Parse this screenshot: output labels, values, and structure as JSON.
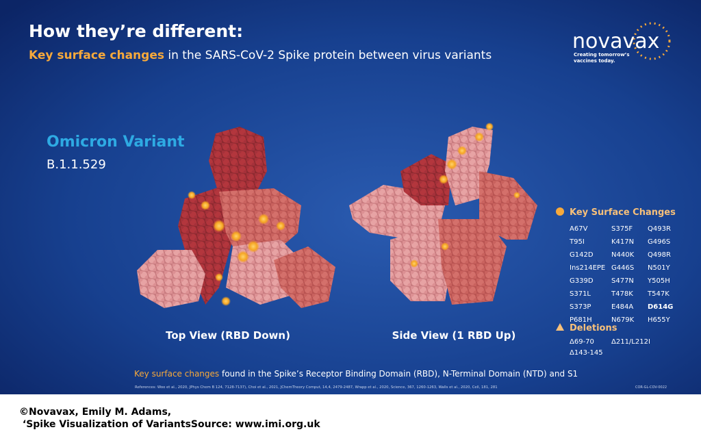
{
  "header": {
    "title": "How they’re different:",
    "subtitle_highlight": "Key surface changes",
    "subtitle_rest": " in the SARS-CoV-2 Spike protein between virus variants"
  },
  "logo": {
    "name": "novavax",
    "tagline_1": "Creating tomorrow’s",
    "tagline_2": "vaccines today."
  },
  "variant": {
    "name": "Omicron Variant",
    "lineage": "B.1.1.529"
  },
  "views": {
    "top": "Top View (RBD Down)",
    "side": "Side View (1 RBD Up)"
  },
  "legend": {
    "changes_title": "Key Surface Changes",
    "changes": [
      [
        "A67V",
        "T95I",
        "G142D",
        "Ins214EPE",
        "G339D",
        "S371L",
        "S373P",
        "P681H"
      ],
      [
        "S375F",
        "K417N",
        "N440K",
        "G446S",
        "S477N",
        "T478K",
        "E484A",
        "N679K"
      ],
      [
        "Q493R",
        "G496S",
        "Q498R",
        "N501Y",
        "Y505H",
        "T547K",
        "D614G",
        "H655Y"
      ]
    ],
    "bold_change": {
      "column": 2,
      "row": 6
    },
    "deletions_title": "Deletions",
    "deletions": [
      "Δ69-70",
      "Δ211/L212I",
      "Δ143-145"
    ]
  },
  "footer": {
    "highlight": "Key surface changes",
    "rest": " found in the Spike’s Receptor Binding Domain (RBD), N-Terminal Domain (NTD) and S1",
    "references": "References: Woo et al., 2020, JPhys Chem B 124, 7128-7137), Choi et al., 2021, JChemTheory Comput, 14,4, 2479-2487, Wrapp et al., 2020, Science, 367, 1260-1263, Walls et al., 2020, Cell, 181, 281",
    "code": "COR-GL-COV-0022"
  },
  "credit": {
    "line_1": "©Novavax, Emily M. Adams,",
    "line_2": " ‘Spike Visualization of VariantsSource: www.imi.org.uk"
  }
}
